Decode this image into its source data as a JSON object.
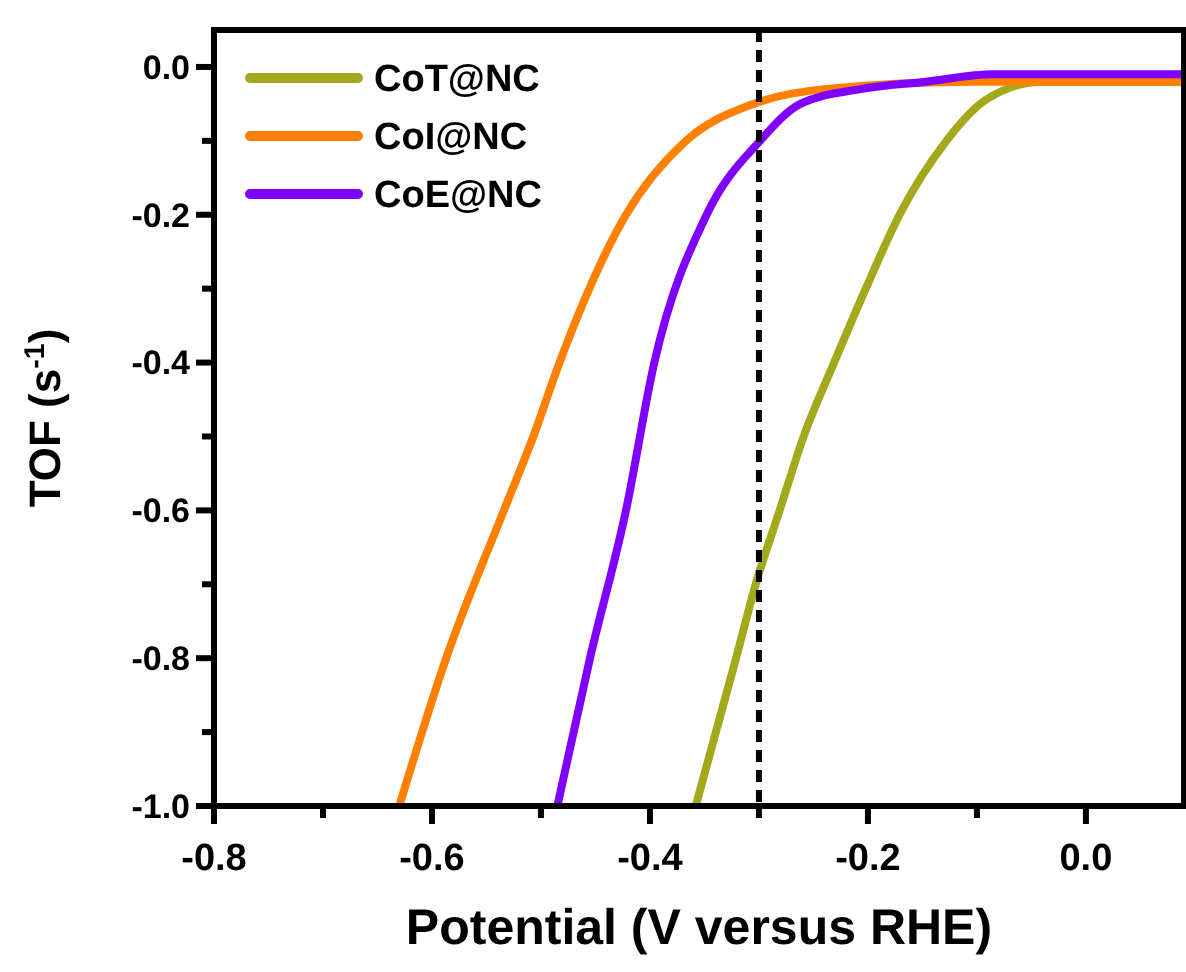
{
  "chart_data": {
    "type": "line",
    "xlabel": "Potential (V versus RHE)",
    "ylabel": "TOF (s$^{-1}$)",
    "xlim": [
      -0.8,
      0.09
    ],
    "ylim": [
      -1.0,
      0.05
    ],
    "xticks": [
      {
        "value": -0.8,
        "label": "-0.8"
      },
      {
        "value": -0.7,
        "label": null
      },
      {
        "value": -0.6,
        "label": "-0.6"
      },
      {
        "value": -0.5,
        "label": null
      },
      {
        "value": -0.4,
        "label": "-0.4"
      },
      {
        "value": -0.3,
        "label": null
      },
      {
        "value": -0.2,
        "label": "-0.2"
      },
      {
        "value": -0.1,
        "label": null
      },
      {
        "value": 0.0,
        "label": "0.0"
      }
    ],
    "yticks": [
      {
        "value": -1.0,
        "label": "-1.0"
      },
      {
        "value": -0.9,
        "label": null
      },
      {
        "value": -0.8,
        "label": "-0.8"
      },
      {
        "value": -0.7,
        "label": null
      },
      {
        "value": -0.6,
        "label": "-0.6"
      },
      {
        "value": -0.5,
        "label": null
      },
      {
        "value": -0.4,
        "label": "-0.4"
      },
      {
        "value": -0.3,
        "label": null
      },
      {
        "value": -0.2,
        "label": "-0.2"
      },
      {
        "value": -0.1,
        "label": null
      },
      {
        "value": 0.0,
        "label": "0.0"
      }
    ],
    "legend": "top left",
    "grid": false,
    "line_style": "solid",
    "ref_lines": [
      {
        "axis": "x",
        "value": -0.3,
        "color": "#000000",
        "line_style": "dashed"
      }
    ],
    "series": [
      {
        "name": "CoT@NC",
        "color": "#a4a91c",
        "x": [
          -0.358,
          -0.321,
          -0.303,
          -0.281,
          -0.259,
          -0.231,
          -0.202,
          -0.171,
          -0.128,
          -0.097,
          -0.073,
          -0.04,
          0.0,
          0.09
        ],
        "values": [
          -1.0,
          -0.8,
          -0.7,
          -0.6,
          -0.5,
          -0.4,
          -0.3,
          -0.2,
          -0.1,
          -0.05,
          -0.03,
          -0.02,
          -0.02,
          -0.02
        ]
      },
      {
        "name": "CoI@NC",
        "color": "#ff8000",
        "x": [
          -0.63,
          -0.587,
          -0.534,
          -0.507,
          -0.483,
          -0.422,
          -0.367,
          -0.305,
          -0.24,
          -0.1,
          0.0,
          0.09
        ],
        "values": [
          -1.0,
          -0.8,
          -0.6,
          -0.5,
          -0.4,
          -0.2,
          -0.1,
          -0.05,
          -0.03,
          -0.02,
          -0.02,
          -0.02
        ]
      },
      {
        "name": "CoE@NC",
        "color": "#7f00ff",
        "x": [
          -0.485,
          -0.455,
          -0.422,
          -0.396,
          -0.348,
          -0.299,
          -0.262,
          -0.207,
          -0.147,
          -0.085,
          0.0,
          0.09
        ],
        "values": [
          -1.0,
          -0.8,
          -0.6,
          -0.4,
          -0.2,
          -0.1,
          -0.05,
          -0.03,
          -0.02,
          -0.01,
          -0.01,
          -0.01
        ]
      }
    ]
  }
}
